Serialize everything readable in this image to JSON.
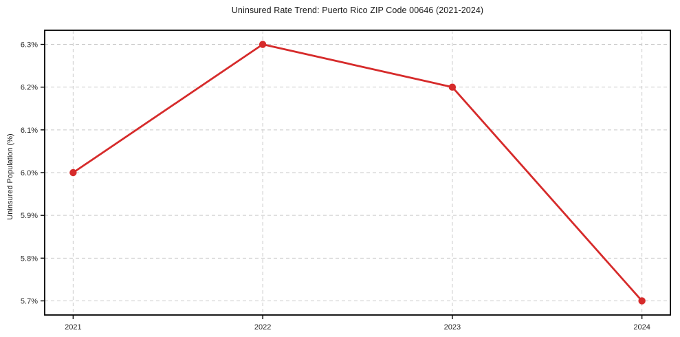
{
  "chart_data": {
    "type": "line",
    "title": "Uninsured Rate Trend: Puerto Rico ZIP Code 00646 (2021-2024)",
    "xlabel": "",
    "ylabel": "Uninsured Population (%)",
    "x": [
      2021,
      2022,
      2023,
      2024
    ],
    "x_tick_labels": [
      "2021",
      "2022",
      "2023",
      "2024"
    ],
    "values": [
      6.0,
      6.3,
      6.2,
      5.7
    ],
    "y_tick_values": [
      5.7,
      5.8,
      5.9,
      6.0,
      6.1,
      6.2,
      6.3
    ],
    "y_tick_labels": [
      "5.7%",
      "5.8%",
      "5.9%",
      "6.0%",
      "6.1%",
      "6.2%",
      "6.3%"
    ],
    "ylim": [
      5.667,
      6.333
    ],
    "xlim": [
      2020.85,
      2024.15
    ],
    "grid": true,
    "grid_style": "dashed",
    "legend": "none",
    "line_color": "#d62b2b",
    "grid_color": "#c9c9c9",
    "spine_color": "#000000",
    "marker": "circle"
  }
}
